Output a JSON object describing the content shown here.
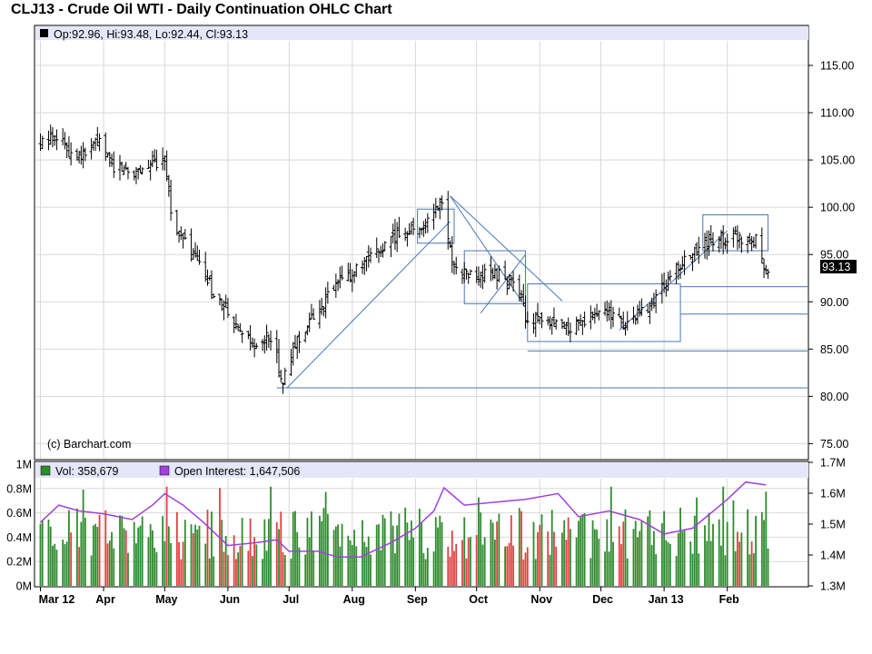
{
  "title": "CLJ13 - Crude Oil WTI - Daily Continuation OHLC Chart",
  "ohlc_info": "Op:92.96, Hi:93.48, Lo:92.44, Cl:93.13",
  "copyright": "(c) Barchart.com",
  "last_price_label": "93.13",
  "volume_legend": "Vol: 358,679",
  "oi_legend": "Open Interest: 1,647,506",
  "colors": {
    "bar": "#000000",
    "trendline": "#4a78b8",
    "vol_up": "#2e8b2e",
    "vol_down": "#e04040",
    "open_interest": "#a040e0",
    "info_band": "#e6e6fa",
    "grid": "#d8d8d8",
    "last_price_bg": "#000000"
  },
  "chart_data": [
    {
      "type": "ohlc",
      "title": "CLJ13 - Crude Oil WTI - Daily Continuation OHLC Chart",
      "x_labels": [
        "Mar 12",
        "Apr",
        "May",
        "Jun",
        "Jul",
        "Aug",
        "Sep",
        "Oct",
        "Nov",
        "Dec",
        "Jan 13",
        "Feb"
      ],
      "y_ticks": [
        "115.00",
        "110.00",
        "105.00",
        "100.00",
        "95.00",
        "90.00",
        "85.00",
        "80.00",
        "75.00"
      ],
      "ylim": [
        73.5,
        117.5
      ],
      "grid": true,
      "last": {
        "open": 92.96,
        "high": 93.48,
        "low": 92.44,
        "close": 93.13
      },
      "close_path": [
        [
          "2012-03-01",
          106.5
        ],
        [
          "2012-03-08",
          108.0
        ],
        [
          "2012-03-15",
          106.0
        ],
        [
          "2012-03-22",
          105.5
        ],
        [
          "2012-03-29",
          107.0
        ],
        [
          "2012-04-05",
          104.5
        ],
        [
          "2012-04-15",
          103.8
        ],
        [
          "2012-04-25",
          104.5
        ],
        [
          "2012-05-01",
          105.5
        ],
        [
          "2012-05-05",
          98.0
        ],
        [
          "2012-05-15",
          95.0
        ],
        [
          "2012-05-25",
          91.0
        ],
        [
          "2012-06-05",
          87.0
        ],
        [
          "2012-06-15",
          85.0
        ],
        [
          "2012-06-22",
          86.5
        ],
        [
          "2012-06-28",
          81.5
        ],
        [
          "2012-07-05",
          86.0
        ],
        [
          "2012-07-15",
          89.0
        ],
        [
          "2012-07-25",
          92.0
        ],
        [
          "2012-08-05",
          93.5
        ],
        [
          "2012-08-15",
          95.5
        ],
        [
          "2012-08-25",
          97.5
        ],
        [
          "2012-09-05",
          98.0
        ],
        [
          "2012-09-14",
          100.5
        ],
        [
          "2012-09-20",
          93.5
        ],
        [
          "2012-10-01",
          92.5
        ],
        [
          "2012-10-10",
          93.0
        ],
        [
          "2012-10-20",
          92.0
        ],
        [
          "2012-10-25",
          88.5
        ],
        [
          "2012-11-05",
          87.5
        ],
        [
          "2012-11-15",
          87.0
        ],
        [
          "2012-11-25",
          88.5
        ],
        [
          "2012-12-05",
          89.0
        ],
        [
          "2012-12-12",
          87.5
        ],
        [
          "2012-12-25",
          89.5
        ],
        [
          "2013-01-05",
          93.0
        ],
        [
          "2013-01-15",
          95.0
        ],
        [
          "2013-01-25",
          96.5
        ],
        [
          "2013-02-05",
          97.0
        ],
        [
          "2013-02-15",
          96.5
        ],
        [
          "2013-02-20",
          93.13
        ]
      ],
      "annotations": {
        "horizontal_lines": [
          80.9,
          84.8,
          88.7,
          91.6
        ],
        "boxes": [
          {
            "from": "2012-09-02",
            "to": "2012-09-20",
            "low": 96.2,
            "high": 99.8
          },
          {
            "from": "2012-09-25",
            "to": "2012-10-25",
            "low": 89.8,
            "high": 95.4
          },
          {
            "from": "2012-10-26",
            "to": "2013-01-09",
            "low": 85.8,
            "high": 91.9
          },
          {
            "from": "2013-01-20",
            "to": "2013-02-21",
            "low": 95.4,
            "high": 99.2
          }
        ],
        "trendlines": [
          {
            "from": [
              "2012-06-30",
              80.9
            ],
            "to": [
              "2012-09-18",
              98.5
            ]
          },
          {
            "from": [
              "2012-09-18",
              101.2
            ],
            "to": [
              "2012-11-12",
              90.1
            ]
          },
          {
            "from": [
              "2012-09-18",
              101.2
            ],
            "to": [
              "2012-10-23",
              90.1
            ]
          },
          {
            "from": [
              "2012-10-03",
              88.8
            ],
            "to": [
              "2012-10-25",
              95.0
            ]
          },
          {
            "from": [
              "2012-12-10",
              87.0
            ],
            "to": [
              "2013-02-01",
              97.5
            ]
          }
        ]
      }
    },
    {
      "type": "bar",
      "title": "",
      "x_labels": [
        "Mar 12",
        "Apr",
        "May",
        "Jun",
        "Jul",
        "Aug",
        "Sep",
        "Oct",
        "Nov",
        "Dec",
        "Jan 13",
        "Feb"
      ],
      "y_ticks_left": [
        "1M",
        "0.8M",
        "0.6M",
        "0.4M",
        "0.2M",
        "0M"
      ],
      "y_ticks_right": [
        "1.7M",
        "1.6M",
        "1.5M",
        "1.4M",
        "1.3M"
      ],
      "series": [
        {
          "name": "Vol: 358,679",
          "axis": "left",
          "last": 358679
        },
        {
          "name": "Open Interest: 1,647,506",
          "axis": "right",
          "type": "line",
          "points": [
            [
              "2012-03-01",
              1.52
            ],
            [
              "2012-03-10",
              1.58
            ],
            [
              "2012-03-20",
              1.56
            ],
            [
              "2012-04-01",
              1.55
            ],
            [
              "2012-04-15",
              1.53
            ],
            [
              "2012-04-25",
              1.58
            ],
            [
              "2012-05-01",
              1.62
            ],
            [
              "2012-05-10",
              1.58
            ],
            [
              "2012-05-20",
              1.52
            ],
            [
              "2012-06-01",
              1.44
            ],
            [
              "2012-06-15",
              1.45
            ],
            [
              "2012-06-25",
              1.46
            ],
            [
              "2012-07-01",
              1.42
            ],
            [
              "2012-07-15",
              1.42
            ],
            [
              "2012-07-25",
              1.4
            ],
            [
              "2012-08-05",
              1.4
            ],
            [
              "2012-08-20",
              1.45
            ],
            [
              "2012-09-01",
              1.5
            ],
            [
              "2012-09-10",
              1.56
            ],
            [
              "2012-09-15",
              1.64
            ],
            [
              "2012-09-25",
              1.58
            ],
            [
              "2012-10-10",
              1.59
            ],
            [
              "2012-10-25",
              1.6
            ],
            [
              "2012-11-10",
              1.62
            ],
            [
              "2012-11-20",
              1.54
            ],
            [
              "2012-12-05",
              1.56
            ],
            [
              "2012-12-20",
              1.53
            ],
            [
              "2013-01-01",
              1.48
            ],
            [
              "2013-01-15",
              1.5
            ],
            [
              "2013-02-01",
              1.6
            ],
            [
              "2013-02-10",
              1.66
            ],
            [
              "2013-02-20",
              1.65
            ]
          ]
        }
      ],
      "ylim_left": [
        0,
        1000000
      ],
      "ylim_right": [
        1.3,
        1.7
      ]
    }
  ]
}
